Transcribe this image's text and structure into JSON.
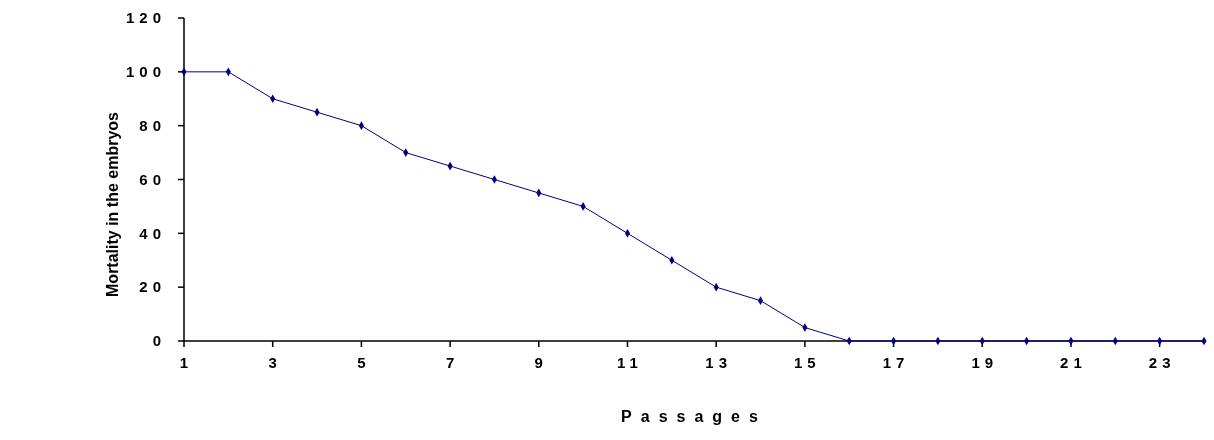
{
  "chart_data": {
    "type": "line",
    "xlabel": "Passages",
    "ylabel": "Mortality in the embryos",
    "x": [
      1,
      2,
      3,
      4,
      5,
      6,
      7,
      8,
      9,
      10,
      11,
      12,
      13,
      14,
      15,
      16,
      17,
      18,
      19,
      20,
      21,
      22,
      23,
      24
    ],
    "series": [
      {
        "color": "#000080",
        "values": [
          100,
          100,
          90,
          85,
          80,
          70,
          65,
          60,
          55,
          50,
          40,
          30,
          20,
          15,
          5,
          0,
          0,
          0,
          0,
          0,
          0,
          0,
          0,
          0
        ]
      }
    ],
    "xlim": [
      1,
      24
    ],
    "xticks": [
      1,
      3,
      5,
      7,
      9,
      11,
      13,
      15,
      17,
      19,
      21,
      23
    ],
    "ylim": [
      0,
      120
    ],
    "yticks": [
      0,
      20,
      40,
      60,
      80,
      100,
      120
    ],
    "grid": false,
    "marker": "diamond",
    "line_style": "solid"
  }
}
